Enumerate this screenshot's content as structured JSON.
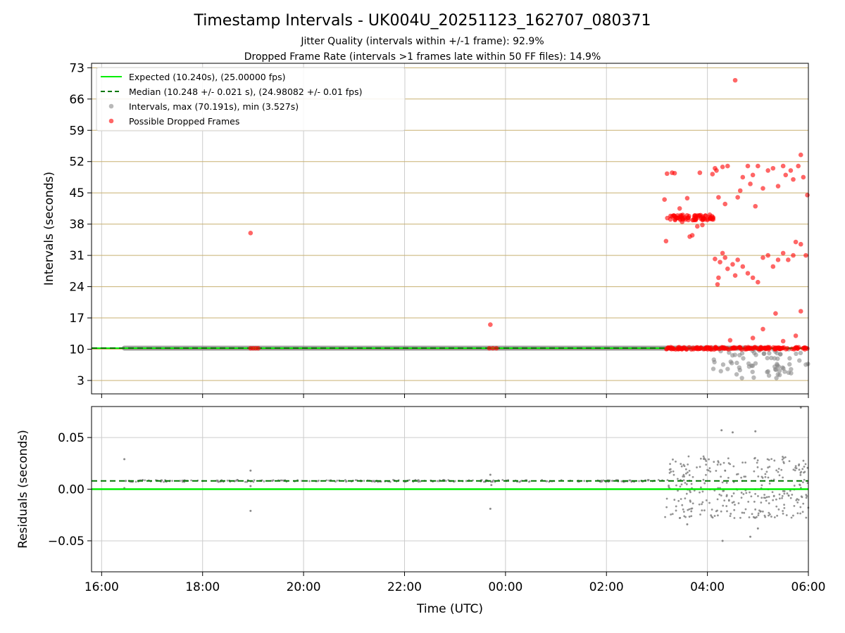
{
  "figure": {
    "title": "Timestamp Intervals - UK004U_20251123_162707_080371",
    "subtitle_line1": "Jitter Quality (intervals within +/-1 frame): 92.9%",
    "subtitle_line2": "Dropped Frame Rate (intervals >1 frames late within 50 FF files): 14.9%"
  },
  "colors": {
    "expected": "#00ee00",
    "median": "#007700",
    "intervals": "#808080",
    "dropped": "#ff0000",
    "gridline_h": "#c8b070",
    "gridline_v": "#cccccc"
  },
  "chart_data": [
    {
      "type": "scatter",
      "name": "intervals-panel",
      "ylabel": "Intervals (seconds)",
      "xlabel": "",
      "xlim_hours": [
        15.8,
        30.0
      ],
      "ylim": [
        0,
        74
      ],
      "yticks": [
        3,
        10,
        17,
        24,
        31,
        38,
        45,
        52,
        59,
        66,
        73
      ],
      "xticks_hours": [
        16,
        18,
        20,
        22,
        24,
        26,
        28,
        30
      ],
      "grid": "horizontal lines and vertical lines",
      "legend": {
        "placement": "top-left",
        "entries": [
          "Expected (10.240s), (25.00000 fps)",
          "Median (10.248 +/- 0.021 s), (24.98082 +/- 0.01 fps)",
          "Intervals, max (70.191s), min (3.527s)",
          "Possible Dropped Frames"
        ]
      },
      "expected_value": 10.24,
      "median_value": 10.248,
      "normal_series_x_range_hours": [
        16.45,
        29.2
      ],
      "normal_series_y": 10.24,
      "dropped_points": [
        {
          "x": 18.95,
          "y": 36.0
        },
        {
          "x": 18.95,
          "y": 10.2
        },
        {
          "x": 19.0,
          "y": 10.2
        },
        {
          "x": 19.05,
          "y": 10.2
        },
        {
          "x": 19.1,
          "y": 10.2
        },
        {
          "x": 23.68,
          "y": 10.2
        },
        {
          "x": 23.75,
          "y": 10.2
        },
        {
          "x": 23.82,
          "y": 10.2
        },
        {
          "x": 23.7,
          "y": 15.5
        },
        {
          "x": 27.15,
          "y": 43.5
        },
        {
          "x": 27.18,
          "y": 34.2
        },
        {
          "x": 27.2,
          "y": 49.3
        },
        {
          "x": 27.3,
          "y": 49.5
        },
        {
          "x": 27.35,
          "y": 49.4
        },
        {
          "x": 27.6,
          "y": 43.8
        },
        {
          "x": 27.65,
          "y": 35.2
        },
        {
          "x": 27.7,
          "y": 35.5
        },
        {
          "x": 27.85,
          "y": 49.5
        },
        {
          "x": 27.45,
          "y": 41.5
        },
        {
          "x": 27.8,
          "y": 37.5
        },
        {
          "x": 27.9,
          "y": 37.8
        },
        {
          "x": 28.1,
          "y": 49.2
        },
        {
          "x": 27.5,
          "y": 38.5
        },
        {
          "x": 28.15,
          "y": 30.2
        },
        {
          "x": 28.2,
          "y": 24.5
        },
        {
          "x": 28.22,
          "y": 26.0
        },
        {
          "x": 28.25,
          "y": 29.5
        },
        {
          "x": 28.3,
          "y": 31.5
        },
        {
          "x": 28.35,
          "y": 30.5
        },
        {
          "x": 28.4,
          "y": 28.0
        },
        {
          "x": 28.5,
          "y": 29.0
        },
        {
          "x": 28.55,
          "y": 26.5
        },
        {
          "x": 28.6,
          "y": 30.0
        },
        {
          "x": 28.7,
          "y": 28.5
        },
        {
          "x": 28.8,
          "y": 27.0
        },
        {
          "x": 28.9,
          "y": 26.0
        },
        {
          "x": 29.0,
          "y": 25.0
        },
        {
          "x": 29.1,
          "y": 30.5
        },
        {
          "x": 29.2,
          "y": 31.0
        },
        {
          "x": 29.3,
          "y": 28.5
        },
        {
          "x": 29.4,
          "y": 30.0
        },
        {
          "x": 29.5,
          "y": 31.5
        },
        {
          "x": 29.6,
          "y": 30.0
        },
        {
          "x": 29.7,
          "y": 31.0
        },
        {
          "x": 29.75,
          "y": 34.0
        },
        {
          "x": 29.85,
          "y": 33.5
        },
        {
          "x": 29.95,
          "y": 31.0
        },
        {
          "x": 28.15,
          "y": 50.5
        },
        {
          "x": 28.18,
          "y": 50.0
        },
        {
          "x": 28.22,
          "y": 44.0
        },
        {
          "x": 28.3,
          "y": 50.8
        },
        {
          "x": 28.35,
          "y": 42.5
        },
        {
          "x": 28.4,
          "y": 51.0
        },
        {
          "x": 28.55,
          "y": 70.2
        },
        {
          "x": 28.6,
          "y": 44.0
        },
        {
          "x": 28.65,
          "y": 45.5
        },
        {
          "x": 28.7,
          "y": 48.5
        },
        {
          "x": 28.8,
          "y": 51.0
        },
        {
          "x": 28.85,
          "y": 47.0
        },
        {
          "x": 28.9,
          "y": 49.0
        },
        {
          "x": 28.95,
          "y": 42.0
        },
        {
          "x": 29.0,
          "y": 51.0
        },
        {
          "x": 29.1,
          "y": 46.0
        },
        {
          "x": 29.2,
          "y": 50.0
        },
        {
          "x": 29.3,
          "y": 50.5
        },
        {
          "x": 29.4,
          "y": 46.5
        },
        {
          "x": 29.5,
          "y": 51.0
        },
        {
          "x": 29.55,
          "y": 49.0
        },
        {
          "x": 29.65,
          "y": 50.0
        },
        {
          "x": 29.7,
          "y": 48.0
        },
        {
          "x": 29.8,
          "y": 51.0
        },
        {
          "x": 29.85,
          "y": 53.5
        },
        {
          "x": 29.9,
          "y": 48.5
        },
        {
          "x": 29.98,
          "y": 44.5
        },
        {
          "x": 29.85,
          "y": 18.5
        },
        {
          "x": 29.35,
          "y": 18.0
        },
        {
          "x": 29.1,
          "y": 14.5
        },
        {
          "x": 29.75,
          "y": 13.0
        },
        {
          "x": 28.45,
          "y": 12.0
        },
        {
          "x": 28.9,
          "y": 12.5
        },
        {
          "x": 29.5,
          "y": 11.8
        }
      ],
      "dropped_cluster_38_x_range_hours": [
        27.2,
        28.15
      ],
      "dropped_cluster_38_y": 39.5,
      "dropped_base_x_range_hours": [
        27.15,
        30.0
      ],
      "dropped_base_y": 10.2,
      "low_interval_points_x_range_hours": [
        28.1,
        30.0
      ]
    },
    {
      "type": "scatter",
      "name": "residuals-panel",
      "ylabel": "Residuals (seconds)",
      "xlabel": "Time (UTC)",
      "xlim_hours": [
        15.8,
        30.0
      ],
      "ylim": [
        -0.08,
        0.08
      ],
      "yticks": [
        0.05,
        0.0,
        -0.05
      ],
      "ytick_labels": [
        "0.05",
        "0.00",
        "−0.05"
      ],
      "xticks_hours": [
        16,
        18,
        20,
        22,
        24,
        26,
        28,
        30
      ],
      "xtick_labels": [
        "16:00",
        "18:00",
        "20:00",
        "22:00",
        "00:00",
        "02:00",
        "04:00",
        "06:00"
      ],
      "grid": "on",
      "expected_residual": 0.0,
      "median_residual": 0.008,
      "outlier_points": [
        {
          "x": 16.45,
          "y": 0.029
        },
        {
          "x": 16.45,
          "y": 0.001
        },
        {
          "x": 18.95,
          "y": 0.018
        },
        {
          "x": 18.95,
          "y": -0.021
        },
        {
          "x": 18.95,
          "y": 0.003
        },
        {
          "x": 23.7,
          "y": 0.014
        },
        {
          "x": 23.7,
          "y": -0.019
        },
        {
          "x": 23.72,
          "y": 0.004
        },
        {
          "x": 28.28,
          "y": 0.057
        },
        {
          "x": 28.5,
          "y": 0.055
        },
        {
          "x": 28.95,
          "y": 0.056
        },
        {
          "x": 29.85,
          "y": 0.079
        },
        {
          "x": 28.3,
          "y": -0.05
        },
        {
          "x": 28.85,
          "y": -0.046
        },
        {
          "x": 29.0,
          "y": -0.038
        },
        {
          "x": 27.6,
          "y": -0.034
        }
      ]
    }
  ]
}
